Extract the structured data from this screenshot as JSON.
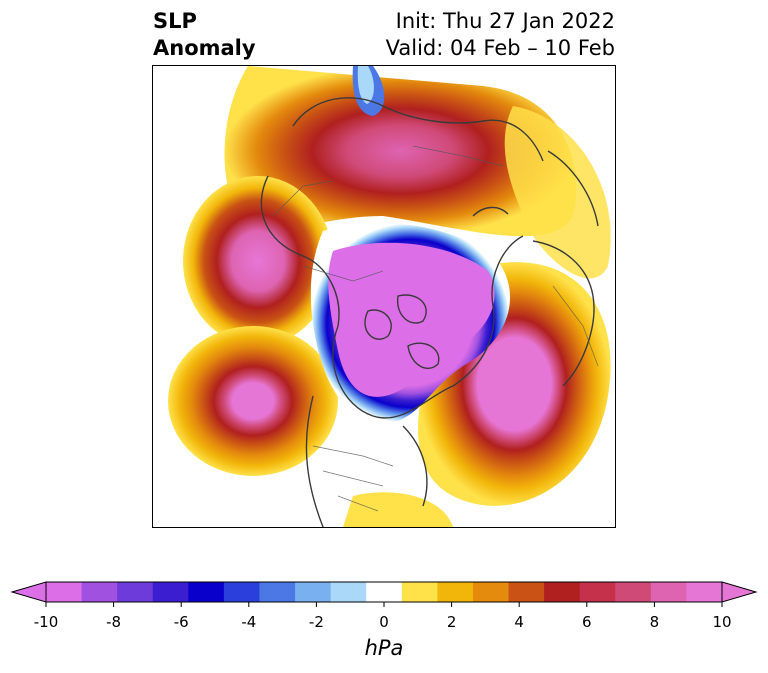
{
  "title": {
    "left_line1": "SLP",
    "left_line2": "Anomaly",
    "right_line1": "Init: Thu 27 Jan 2022",
    "right_line2": "Valid: 04 Feb – 10 Feb"
  },
  "colorbar": {
    "units": "hPa",
    "ticks": [
      "-10",
      "-8",
      "-6",
      "-4",
      "-2",
      "0",
      "2",
      "4",
      "6",
      "8",
      "10"
    ],
    "levels": [
      -10,
      -9,
      -8,
      -7,
      -6,
      -5,
      -4,
      -3,
      -2,
      -1,
      1,
      2,
      3,
      4,
      5,
      6,
      7,
      8,
      9,
      10
    ],
    "colors": [
      "#dc6fe8",
      "#a151e0",
      "#6c3bd9",
      "#3a1ed0",
      "#0a00cc",
      "#2a3fdc",
      "#4c78e6",
      "#79b0f0",
      "#aad8f8",
      "#ffffff",
      "#ffe14a",
      "#f2b60a",
      "#e48a0d",
      "#c95214",
      "#b0201f",
      "#c5314b",
      "#d04a78",
      "#de64b2",
      "#e676d6"
    ],
    "extend_low_color": "#dc6fe8",
    "extend_high_color": "#e676d6"
  },
  "map": {
    "projection": "north-polar-stereographic",
    "field": "SLP anomaly",
    "features": [
      {
        "region": "North Atlantic / Europe",
        "sign": "positive",
        "peak": 10
      },
      {
        "region": "North Pacific / Aleutians",
        "sign": "positive",
        "peak": 10
      },
      {
        "region": "Kara Sea / Siberia",
        "sign": "positive",
        "peak": 8
      },
      {
        "region": "Arctic Ocean / Canadian Archipelago",
        "sign": "negative",
        "peak": -10
      }
    ]
  }
}
